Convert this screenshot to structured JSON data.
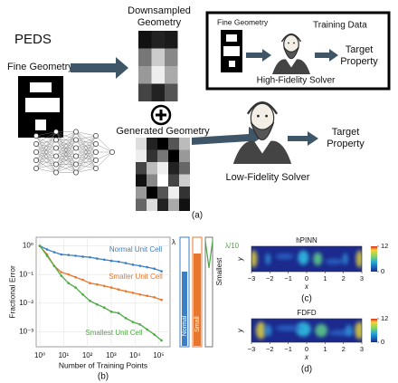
{
  "diagram": {
    "title": "PEDS",
    "fine_geometry_label": "Fine Geometry",
    "downsampled_label": [
      "Downsampled",
      "Geometry"
    ],
    "generated_label": "Generated Geometry",
    "low_fidelity_label": "Low-Fidelity Solver",
    "target_label": [
      "Target",
      "Property"
    ],
    "inset": {
      "fine_geometry_label": "Fine Geometry",
      "training_label": "Training Data",
      "target_label": [
        "Target",
        "Property"
      ],
      "high_fidelity_label": "High-Fidelity Solver"
    },
    "panel": "(a)"
  },
  "chart_data": [
    {
      "type": "line",
      "panel": "(b)",
      "xlabel": "Number of Training Points",
      "ylabel": "Fractional Error",
      "xscale": "log",
      "yscale": "log",
      "grid": true,
      "legend": "inline",
      "x": [
        1,
        2,
        4,
        8,
        16,
        32,
        64,
        128,
        256,
        512,
        1024,
        2048,
        4096,
        8192,
        16384,
        32768,
        65536,
        131072
      ],
      "series": [
        {
          "name": "Normal Unit Cell",
          "color": "#3b7fc4",
          "values": [
            1.0,
            0.75,
            0.6,
            0.5,
            0.48,
            0.45,
            0.42,
            0.4,
            0.36,
            0.33,
            0.3,
            0.28,
            0.25,
            0.22,
            0.2,
            0.18,
            0.16,
            0.13
          ]
        },
        {
          "name": "Smaller Unit Cell",
          "color": "#e8772e",
          "values": [
            1.0,
            0.5,
            0.2,
            0.12,
            0.1,
            0.08,
            0.065,
            0.05,
            0.045,
            0.04,
            0.035,
            0.03,
            0.026,
            0.023,
            0.02,
            0.018,
            0.016,
            0.013
          ]
        },
        {
          "name": "Smallest Unit Cell",
          "color": "#4fa845",
          "values": [
            1.0,
            0.45,
            0.2,
            0.09,
            0.05,
            0.035,
            0.02,
            0.012,
            0.009,
            0.007,
            0.005,
            0.0045,
            0.003,
            0.0022,
            0.0018,
            0.0012,
            0.0008,
            0.0005
          ]
        }
      ],
      "xlim": [
        0.7,
        300000
      ],
      "xticks": [
        {
          "value": 1,
          "label": "10⁰"
        },
        {
          "value": 10,
          "label": "10¹"
        },
        {
          "value": 100,
          "label": "10²"
        },
        {
          "value": 1000,
          "label": "10³"
        },
        {
          "value": 10000,
          "label": "10⁴"
        },
        {
          "value": 100000,
          "label": "10⁵"
        }
      ],
      "ylim": [
        0.0003,
        2
      ],
      "yticks": [
        {
          "value": 1,
          "label": "10⁰"
        },
        {
          "value": 0.1,
          "label": "10⁻¹"
        },
        {
          "value": 0.01,
          "label": "10⁻²"
        },
        {
          "value": 0.001,
          "label": "10⁻³"
        }
      ],
      "cell_sizes": {
        "labels": [
          "Normal",
          "Small",
          "Smallest"
        ],
        "lambda_label": "λ",
        "lambda_small_label": "λ/10"
      }
    },
    {
      "type": "heatmap",
      "panel": "(c)",
      "title": "hPINN",
      "xlabel": "x",
      "ylabel": "y",
      "xlim": [
        -3,
        3
      ],
      "xticks": [
        {
          "value": -3,
          "label": "−3"
        },
        {
          "value": -2,
          "label": "−2"
        },
        {
          "value": -1,
          "label": "−1"
        },
        0,
        1,
        2,
        3
      ],
      "colorbar_lim": [
        0,
        12
      ],
      "colorbar_ticks": [
        0,
        12
      ]
    },
    {
      "type": "heatmap",
      "panel": "(d)",
      "title": "FDFD",
      "xlabel": "x",
      "ylabel": "y",
      "xlim": [
        -3,
        3
      ],
      "xticks": [
        {
          "value": -3,
          "label": "−3"
        },
        {
          "value": -2,
          "label": "−2"
        },
        {
          "value": -1,
          "label": "−1"
        },
        0,
        1,
        2,
        3
      ],
      "colorbar_lim": [
        0,
        12
      ],
      "colorbar_ticks": [
        0,
        12
      ]
    }
  ]
}
